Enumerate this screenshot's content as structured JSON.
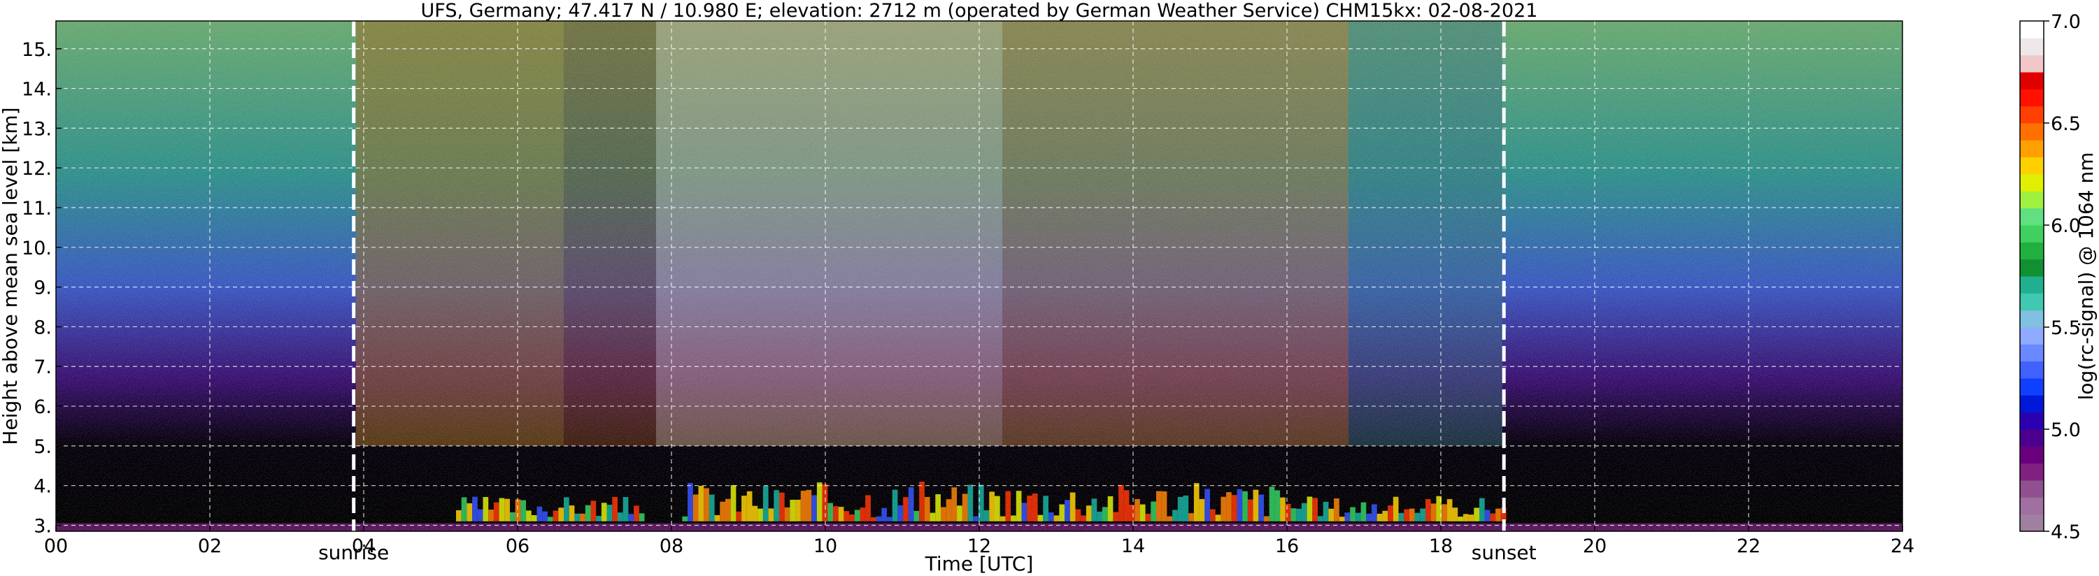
{
  "chart_data": {
    "type": "heatmap",
    "title": "UFS, Germany; 47.417 N / 10.980 E; elevation: 2712 m  (operated by German Weather Service)    CHM15kx: 02-08-2021",
    "xlabel": "Time [UTC]",
    "ylabel": "Height above mean sea level [km]",
    "colorbar_label": "log(rc-signal) @ 1064 nm",
    "xlim": [
      0,
      24
    ],
    "ylim": [
      2.85,
      15.7
    ],
    "x_ticks": [
      0,
      2,
      4,
      6,
      8,
      10,
      12,
      14,
      16,
      18,
      20,
      22,
      24
    ],
    "x_tick_labels": [
      "00",
      "02",
      "04",
      "06",
      "08",
      "10",
      "12",
      "14",
      "16",
      "18",
      "20",
      "22",
      "24"
    ],
    "y_ticks": [
      3,
      4,
      5,
      6,
      7,
      8,
      9,
      10,
      11,
      12,
      13,
      14,
      15
    ],
    "y_tick_labels": [
      "3.",
      "4.",
      "5.",
      "6.",
      "7.",
      "8.",
      "9.",
      "10.",
      "11.",
      "12.",
      "13.",
      "14.",
      "15."
    ],
    "grid": true,
    "colorbar_range": [
      4.5,
      7.0
    ],
    "colorbar_ticks": [
      4.5,
      5.0,
      5.5,
      6.0,
      6.5,
      7.0
    ],
    "colorbar_tick_labels": [
      "4.5",
      "5.0",
      "5.5",
      "6.0",
      "6.5",
      "7.0"
    ],
    "colorbar_colors": [
      "#a080a0",
      "#a070a0",
      "#905090",
      "#80207f",
      "#6a0080",
      "#4b0090",
      "#2a00b0",
      "#0018d8",
      "#1040ff",
      "#4060ff",
      "#6a88ff",
      "#90aaff",
      "#80c0e0",
      "#40c8b0",
      "#20b090",
      "#109030",
      "#20b040",
      "#40d060",
      "#60e080",
      "#a0f040",
      "#e0f000",
      "#ffd000",
      "#ffa000",
      "#ff7000",
      "#ff4000",
      "#ff1000",
      "#e00000",
      "#f0c8c8",
      "#f0e8e8",
      "#ffffff"
    ],
    "markers": [
      {
        "label": "sunrise",
        "x": 3.87
      },
      {
        "label": "sunset",
        "x": 18.82
      }
    ]
  }
}
